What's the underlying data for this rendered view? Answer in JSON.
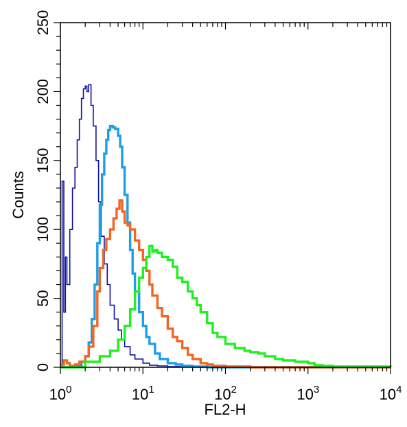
{
  "chart_data": {
    "type": "line",
    "xlabel": "FL2-H",
    "ylabel": "Counts",
    "xscale": "log",
    "xlim": [
      1,
      10000
    ],
    "ylim": [
      0,
      250
    ],
    "x_ticks": [
      {
        "base": "10",
        "exp": "0"
      },
      {
        "base": "10",
        "exp": "1"
      },
      {
        "base": "10",
        "exp": "2"
      },
      {
        "base": "10",
        "exp": "3"
      },
      {
        "base": "10",
        "exp": "4"
      }
    ],
    "y_ticks": [
      "0",
      "50",
      "100",
      "150",
      "200",
      "250"
    ],
    "grid": false,
    "legend": "none",
    "series": [
      {
        "color": "#1010a0",
        "x": [
          1.0,
          1.05,
          1.1,
          1.15,
          1.2,
          1.3,
          1.4,
          1.5,
          1.6,
          1.7,
          1.8,
          1.9,
          2.0,
          2.1,
          2.2,
          2.35,
          2.5,
          2.7,
          2.9,
          3.1,
          3.4,
          3.7,
          4.0,
          4.5,
          5.0,
          5.5,
          6.0,
          7.0,
          8.0,
          10.0,
          12.0,
          15.0,
          20.0,
          30.0,
          50.0,
          100.0,
          1000.0,
          10000.0
        ],
        "values": [
          0,
          135,
          40,
          80,
          60,
          100,
          130,
          145,
          165,
          180,
          195,
          202,
          204,
          200,
          205,
          190,
          175,
          150,
          120,
          95,
          75,
          60,
          45,
          35,
          27,
          20,
          15,
          9,
          6,
          3,
          1.5,
          1,
          0.5,
          0.3,
          0,
          0,
          0,
          0
        ]
      },
      {
        "color": "#1a9fe8",
        "x": [
          1.0,
          1.5,
          1.8,
          2.0,
          2.2,
          2.4,
          2.6,
          2.8,
          3.0,
          3.2,
          3.4,
          3.6,
          3.8,
          4.0,
          4.3,
          4.6,
          5.0,
          5.3,
          5.6,
          6.0,
          6.5,
          7.0,
          7.5,
          8.0,
          9.0,
          10.0,
          11.0,
          12.0,
          14.0,
          16.0,
          20.0,
          25.0,
          30.0,
          40.0,
          60.0,
          100.0,
          1000.0,
          10000.0
        ],
        "values": [
          0,
          1,
          4,
          8,
          18,
          35,
          60,
          90,
          118,
          140,
          155,
          165,
          172,
          175,
          174,
          173,
          168,
          160,
          145,
          125,
          105,
          85,
          68,
          55,
          40,
          30,
          22,
          17,
          10,
          6,
          3,
          2,
          1,
          0.5,
          0,
          0,
          0,
          0
        ]
      },
      {
        "color": "#f26522",
        "x": [
          1.0,
          1.1,
          1.2,
          1.3,
          1.5,
          1.7,
          2.0,
          2.2,
          2.5,
          2.8,
          3.0,
          3.3,
          3.6,
          4.0,
          4.4,
          4.8,
          5.2,
          5.6,
          6.0,
          6.5,
          7.0,
          8.0,
          9.0,
          10.0,
          11.0,
          12.0,
          13.0,
          15.0,
          17.0,
          20.0,
          23.0,
          26.0,
          30.0,
          35.0,
          40.0,
          50.0,
          60.0,
          70.0,
          100.0,
          200.0,
          1000.0,
          10000.0
        ],
        "values": [
          2,
          5,
          3,
          1,
          2,
          4,
          8,
          15,
          30,
          55,
          72,
          85,
          93,
          100,
          108,
          115,
          121,
          113,
          105,
          103,
          100,
          92,
          85,
          78,
          70,
          60,
          52,
          43,
          37,
          28,
          22,
          19,
          14,
          9,
          6,
          3,
          2,
          1,
          0.5,
          0,
          0,
          0
        ]
      },
      {
        "color": "#20f020",
        "x": [
          1.0,
          2.0,
          3.0,
          4.0,
          5.0,
          6.0,
          7.0,
          8.0,
          9.0,
          10.0,
          11.0,
          12.0,
          13.0,
          14.0,
          15.0,
          17.0,
          20.0,
          23.0,
          26.0,
          30.0,
          35.0,
          40.0,
          45.0,
          50.0,
          60.0,
          70.0,
          80.0,
          100.0,
          130.0,
          170.0,
          200.0,
          250.0,
          300.0,
          400.0,
          500.0,
          700.0,
          900.0,
          1000.0,
          1200.0,
          1500.0,
          2000.0,
          10000.0
        ],
        "values": [
          0,
          4,
          8,
          12,
          20,
          30,
          42,
          55,
          65,
          72,
          80,
          88,
          84,
          85,
          83,
          80,
          78,
          73,
          65,
          62,
          55,
          50,
          45,
          40,
          32,
          25,
          22,
          17,
          14,
          12,
          11,
          10,
          8,
          6,
          5,
          4,
          4,
          3,
          1.5,
          1,
          0.5,
          0
        ]
      }
    ]
  }
}
